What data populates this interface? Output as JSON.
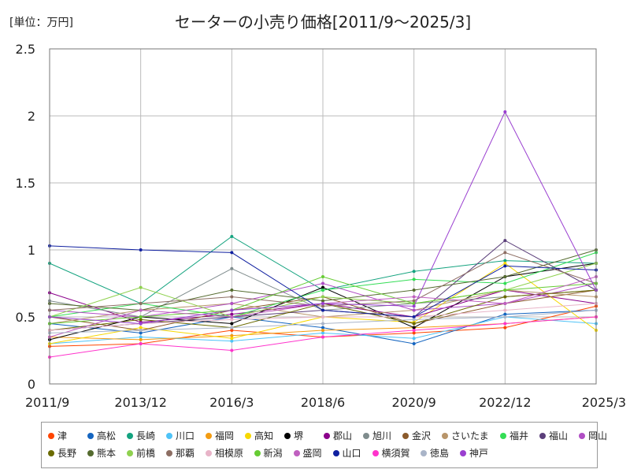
{
  "header": {
    "unit": "[単位：万円]",
    "title": "セーターの小売り価格[2011/9～2025/3]"
  },
  "chart_data": {
    "type": "line",
    "title": "セーターの小売り価格[2011/9～2025/3]",
    "unit": "[単位：万円]",
    "xlabel": "",
    "ylabel": "",
    "x_tick_labels": [
      "2011/9",
      "2013/12",
      "2016/3",
      "2018/6",
      "2020/9",
      "2022/12",
      "2025/3"
    ],
    "y_tick_labels": [
      "0",
      "0.5",
      "1",
      "1.5",
      "2",
      "2.5"
    ],
    "ylim": [
      0,
      2.5
    ],
    "grid": true,
    "legend_position": "bottom",
    "colors": {
      "津": "#ff4500",
      "高松": "#1565c0",
      "長崎": "#14a37f",
      "川口": "#4fc3f7",
      "福岡": "#f39c12",
      "高知": "#f7d800",
      "堺": "#000000",
      "郡山": "#8b008b",
      "旭川": "#7f8c8d",
      "金沢": "#8b5a2b",
      "さいたま": "#b8956a",
      "福井": "#33dd55",
      "福山": "#5b3f7a",
      "岡山": "#b04ec4",
      "長野": "#6b6b00",
      "熊本": "#556b2f",
      "前橋": "#8fd14f",
      "那覇": "#8d6e63",
      "相模原": "#e8b4c8",
      "新潟": "#66cc33",
      "盛岡": "#c060c0",
      "山口": "#1020a0",
      "横須賀": "#ff33cc",
      "徳島": "#a9b4c8",
      "神戸": "#9a3fd0"
    },
    "series": [
      {
        "name": "津",
        "x": [
          "2011/9",
          "2013/12",
          "2016/3",
          "2018/6",
          "2020/9",
          "2022/12",
          "2025/3"
        ],
        "values": [
          0.28,
          0.3,
          0.4,
          0.35,
          0.38,
          0.42,
          0.58
        ]
      },
      {
        "name": "高松",
        "x": [
          "2011/9",
          "2013/12",
          "2016/3",
          "2018/6",
          "2020/9",
          "2022/12",
          "2025/3"
        ],
        "values": [
          0.45,
          0.38,
          0.5,
          0.42,
          0.3,
          0.52,
          0.55
        ]
      },
      {
        "name": "長崎",
        "x": [
          "2011/9",
          "2013/12",
          "2016/3",
          "2018/6",
          "2020/9",
          "2022/12",
          "2025/3"
        ],
        "values": [
          0.9,
          0.6,
          1.1,
          0.7,
          0.84,
          0.92,
          0.9
        ]
      },
      {
        "name": "川口",
        "x": [
          "2011/9",
          "2013/12",
          "2016/3",
          "2018/6",
          "2020/9",
          "2022/12",
          "2025/3"
        ],
        "values": [
          0.3,
          0.35,
          0.32,
          0.38,
          0.34,
          0.5,
          0.45
        ]
      },
      {
        "name": "福岡",
        "x": [
          "2011/9",
          "2013/12",
          "2016/3",
          "2018/6",
          "2020/9",
          "2022/12",
          "2025/3"
        ],
        "values": [
          0.35,
          0.33,
          0.36,
          0.4,
          0.42,
          0.45,
          0.5
        ]
      },
      {
        "name": "高知",
        "x": [
          "2011/9",
          "2013/12",
          "2016/3",
          "2018/6",
          "2020/9",
          "2022/12",
          "2025/3"
        ],
        "values": [
          0.3,
          0.42,
          0.34,
          0.5,
          0.46,
          0.9,
          0.4
        ]
      },
      {
        "name": "堺",
        "x": [
          "2011/9",
          "2013/12",
          "2016/3",
          "2018/6",
          "2020/9",
          "2022/12",
          "2025/3"
        ],
        "values": [
          0.33,
          0.5,
          0.45,
          0.72,
          0.42,
          0.8,
          0.9
        ]
      },
      {
        "name": "郡山",
        "x": [
          "2011/9",
          "2013/12",
          "2016/3",
          "2018/6",
          "2020/9",
          "2022/12",
          "2025/3"
        ],
        "values": [
          0.68,
          0.46,
          0.52,
          0.6,
          0.5,
          0.7,
          0.6
        ]
      },
      {
        "name": "旭川",
        "x": [
          "2011/9",
          "2013/12",
          "2016/3",
          "2018/6",
          "2020/9",
          "2022/12",
          "2025/3"
        ],
        "values": [
          0.62,
          0.5,
          0.86,
          0.55,
          0.6,
          0.65,
          0.7
        ]
      },
      {
        "name": "金沢",
        "x": [
          "2011/9",
          "2013/12",
          "2016/3",
          "2018/6",
          "2020/9",
          "2022/12",
          "2025/3"
        ],
        "values": [
          0.5,
          0.4,
          0.55,
          0.65,
          0.45,
          0.6,
          0.7
        ]
      },
      {
        "name": "さいたま",
        "x": [
          "2011/9",
          "2013/12",
          "2016/3",
          "2018/6",
          "2020/9",
          "2022/12",
          "2025/3"
        ],
        "values": [
          0.45,
          0.55,
          0.6,
          0.5,
          0.55,
          0.7,
          0.65
        ]
      },
      {
        "name": "福井",
        "x": [
          "2011/9",
          "2013/12",
          "2016/3",
          "2018/6",
          "2020/9",
          "2022/12",
          "2025/3"
        ],
        "values": [
          0.5,
          0.6,
          0.5,
          0.7,
          0.78,
          0.75,
          0.98
        ]
      },
      {
        "name": "福山",
        "x": [
          "2011/9",
          "2013/12",
          "2016/3",
          "2018/6",
          "2020/9",
          "2022/12",
          "2025/3"
        ],
        "values": [
          0.4,
          0.45,
          0.5,
          0.55,
          0.5,
          1.07,
          0.7
        ]
      },
      {
        "name": "岡山",
        "x": [
          "2011/9",
          "2013/12",
          "2016/3",
          "2018/6",
          "2020/9",
          "2022/12",
          "2025/3"
        ],
        "values": [
          0.55,
          0.5,
          0.6,
          0.75,
          0.55,
          0.6,
          0.75
        ]
      },
      {
        "name": "長野",
        "x": [
          "2011/9",
          "2013/12",
          "2016/3",
          "2018/6",
          "2020/9",
          "2022/12",
          "2025/3"
        ],
        "values": [
          0.4,
          0.48,
          0.42,
          0.6,
          0.45,
          0.65,
          0.7
        ]
      },
      {
        "name": "熊本",
        "x": [
          "2011/9",
          "2013/12",
          "2016/3",
          "2018/6",
          "2020/9",
          "2022/12",
          "2025/3"
        ],
        "values": [
          0.6,
          0.55,
          0.7,
          0.62,
          0.7,
          0.8,
          1.0
        ]
      },
      {
        "name": "前橋",
        "x": [
          "2011/9",
          "2013/12",
          "2016/3",
          "2018/6",
          "2020/9",
          "2022/12",
          "2025/3"
        ],
        "values": [
          0.5,
          0.72,
          0.5,
          0.65,
          0.6,
          0.7,
          0.9
        ]
      },
      {
        "name": "那覇",
        "x": [
          "2011/9",
          "2013/12",
          "2016/3",
          "2018/6",
          "2020/9",
          "2022/12",
          "2025/3"
        ],
        "values": [
          0.55,
          0.6,
          0.65,
          0.58,
          0.62,
          0.98,
          0.75
        ]
      },
      {
        "name": "相模原",
        "x": [
          "2011/9",
          "2013/12",
          "2016/3",
          "2018/6",
          "2020/9",
          "2022/12",
          "2025/3"
        ],
        "values": [
          0.4,
          0.45,
          0.48,
          0.5,
          0.5,
          0.55,
          0.6
        ]
      },
      {
        "name": "新潟",
        "x": [
          "2011/9",
          "2013/12",
          "2016/3",
          "2018/6",
          "2020/9",
          "2022/12",
          "2025/3"
        ],
        "values": [
          0.45,
          0.5,
          0.55,
          0.8,
          0.6,
          0.7,
          0.75
        ]
      },
      {
        "name": "盛岡",
        "x": [
          "2011/9",
          "2013/12",
          "2016/3",
          "2018/6",
          "2020/9",
          "2022/12",
          "2025/3"
        ],
        "values": [
          0.35,
          0.55,
          0.5,
          0.6,
          0.65,
          0.6,
          0.8
        ]
      },
      {
        "name": "山口",
        "x": [
          "2011/9",
          "2013/12",
          "2016/3",
          "2018/6",
          "2020/9",
          "2022/12",
          "2025/3"
        ],
        "values": [
          1.03,
          1.0,
          0.98,
          0.55,
          0.5,
          0.88,
          0.85
        ]
      },
      {
        "name": "横須賀",
        "x": [
          "2011/9",
          "2013/12",
          "2016/3",
          "2018/6",
          "2020/9",
          "2022/12",
          "2025/3"
        ],
        "values": [
          0.2,
          0.3,
          0.25,
          0.35,
          0.4,
          0.45,
          0.5
        ]
      },
      {
        "name": "徳島",
        "x": [
          "2011/9",
          "2013/12",
          "2016/3",
          "2018/6",
          "2020/9",
          "2022/12",
          "2025/3"
        ],
        "values": [
          0.38,
          0.4,
          0.42,
          0.45,
          0.48,
          0.5,
          0.55
        ]
      },
      {
        "name": "神戸",
        "x": [
          "2011/9",
          "2013/12",
          "2016/3",
          "2018/6",
          "2020/9",
          "2022/12",
          "2025/3"
        ],
        "values": [
          0.5,
          0.45,
          0.55,
          0.6,
          0.58,
          2.03,
          0.7
        ]
      }
    ]
  }
}
